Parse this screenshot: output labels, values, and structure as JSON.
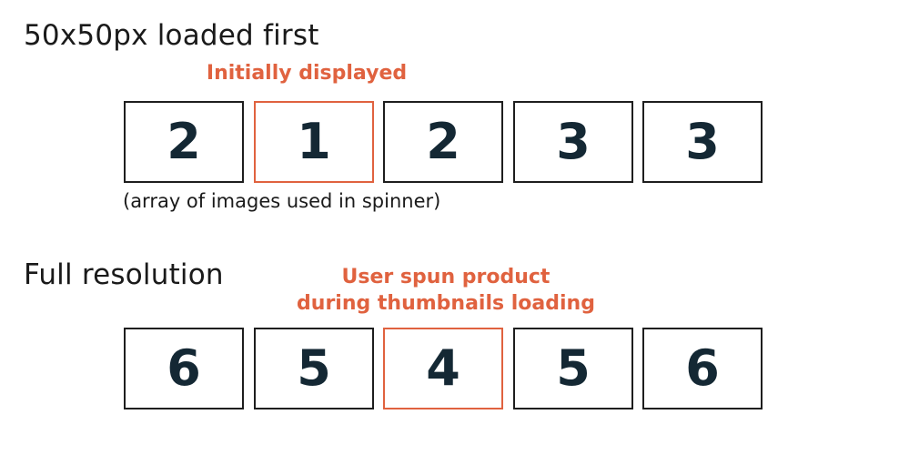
{
  "colors": {
    "accent": "#e0623f",
    "frame_border": "#1e1e1e",
    "digit": "#142834",
    "text": "#1a1a1a"
  },
  "thumbnails": {
    "heading": "50x50px loaded first",
    "callout": "Initially displayed",
    "caption": "(array of images used in spinner)",
    "active_index": 1,
    "frames": [
      "2",
      "1",
      "2",
      "3",
      "3"
    ]
  },
  "fullres": {
    "heading": "Full resolution",
    "callout_line1": "User spun product",
    "callout_line2": "during thumbnails loading",
    "active_index": 2,
    "frames": [
      "6",
      "5",
      "4",
      "5",
      "6"
    ]
  }
}
